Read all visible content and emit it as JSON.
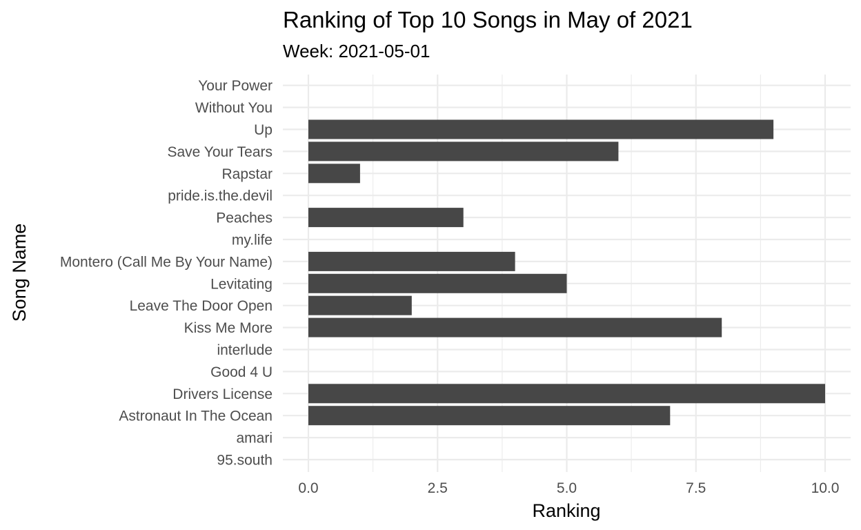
{
  "chart_data": {
    "type": "bar",
    "orientation": "horizontal",
    "title": "Ranking of Top 10 Songs in May of 2021",
    "subtitle": "Week: 2021-05-01",
    "xlabel": "Ranking",
    "ylabel": "Song Name",
    "xlim": [
      0,
      10
    ],
    "x_ticks": [
      0,
      2.5,
      5,
      7.5,
      10
    ],
    "x_tick_labels": [
      "0.0",
      "2.5",
      "5.0",
      "7.5",
      "10.0"
    ],
    "grid": true,
    "categories": [
      "95.south",
      "amari",
      "Astronaut In The Ocean",
      "Drivers License",
      "Good 4 U",
      "interlude",
      "Kiss Me More",
      "Leave The Door Open",
      "Levitating",
      "Montero (Call Me By Your Name)",
      "my.life",
      "Peaches",
      "pride.is.the.devil",
      "Rapstar",
      "Save Your Tears",
      "Up",
      "Without You",
      "Your Power"
    ],
    "values": [
      null,
      null,
      7,
      10,
      null,
      null,
      8,
      2,
      5,
      4,
      null,
      3,
      null,
      1,
      6,
      9,
      null,
      null
    ],
    "bar_color": "#474747",
    "grid_color": "#ebebeb"
  }
}
